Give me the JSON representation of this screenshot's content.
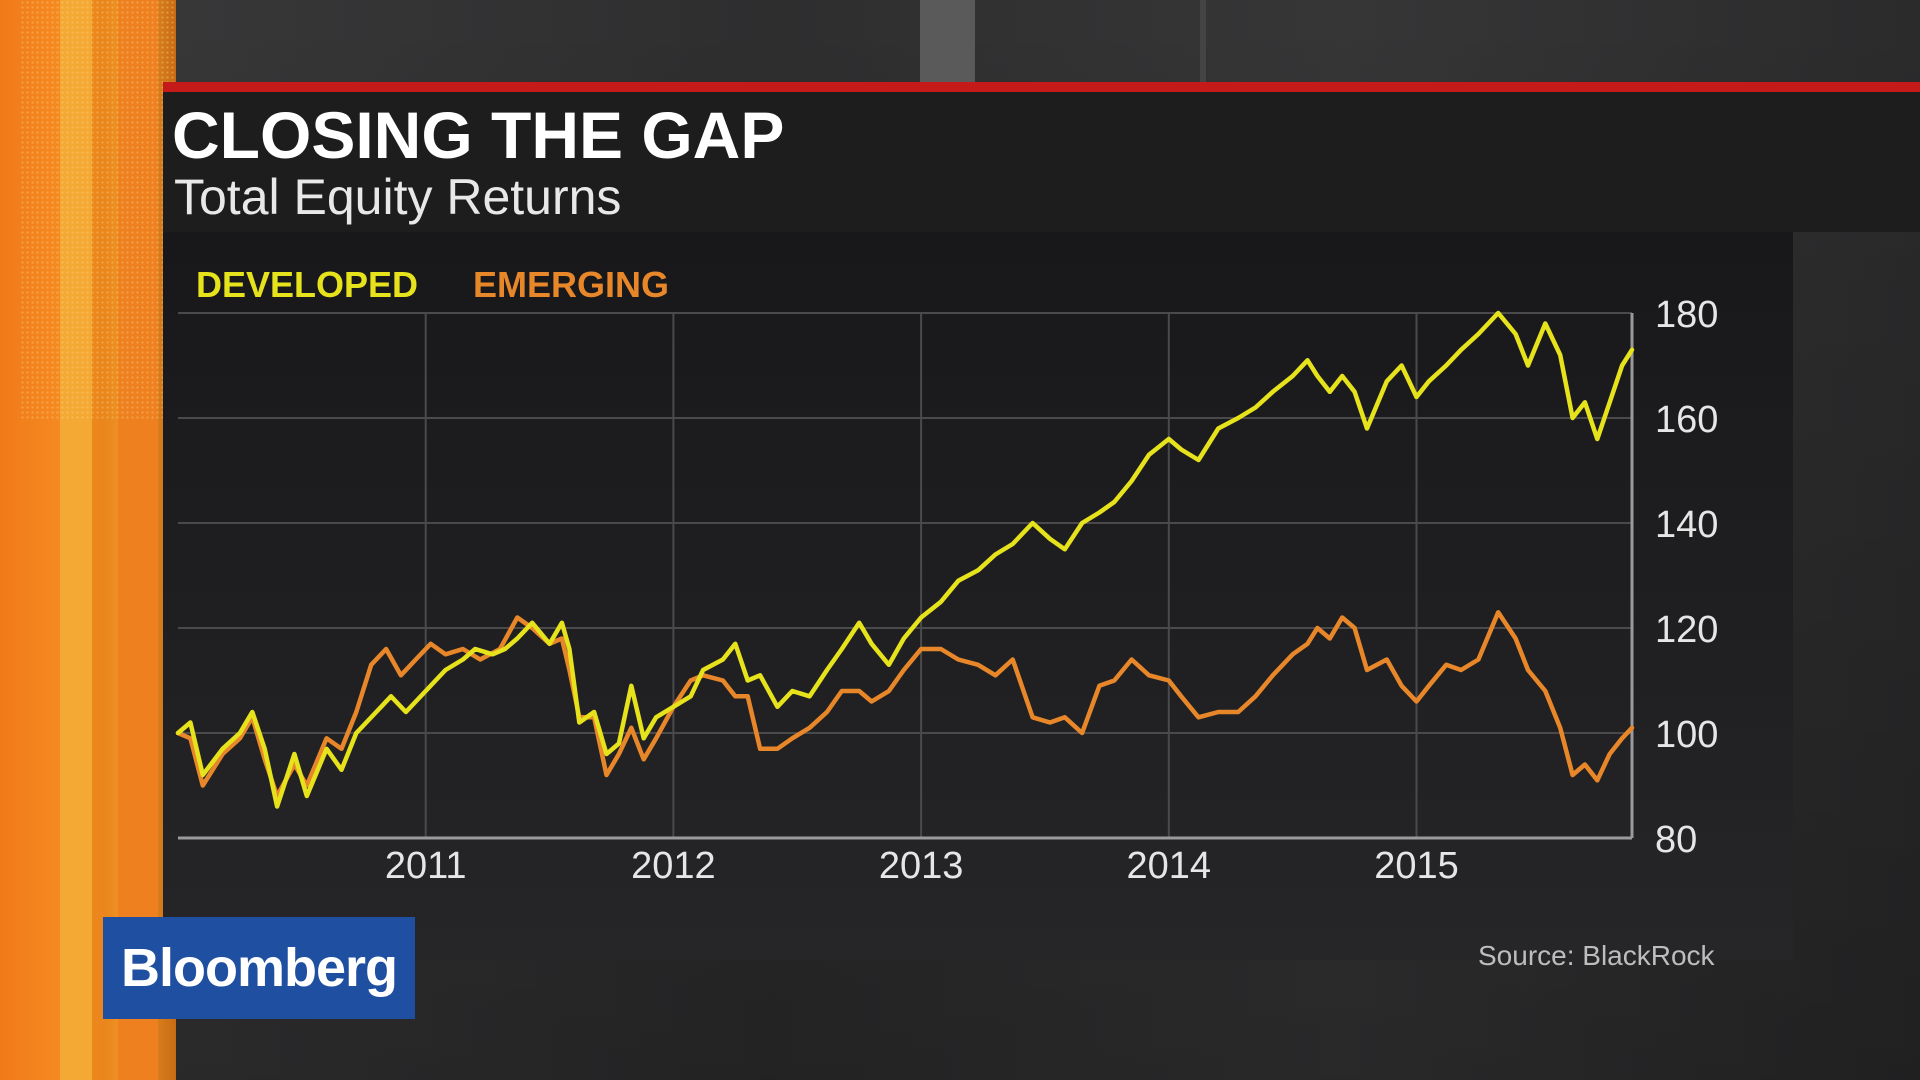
{
  "header": {
    "title": "CLOSING THE GAP",
    "subtitle": "Total Equity Returns"
  },
  "source": "Source: BlackRock",
  "logo": "Bloomberg",
  "colors": {
    "accent_red": "#c41a1a",
    "developed": "#e6e21c",
    "emerging": "#e8872a",
    "logo_blue": "#1f4fa0"
  },
  "chart_data": {
    "type": "line",
    "title": "CLOSING THE GAP",
    "subtitle": "Total Equity Returns",
    "xlabel": "",
    "ylabel": "",
    "ylim": [
      80,
      180
    ],
    "xlim": [
      2010.0,
      2015.87
    ],
    "yticks": [
      180,
      160,
      140,
      120,
      100,
      80
    ],
    "xticks": [
      2011,
      2012,
      2013,
      2014,
      2015
    ],
    "x_tick_labels": [
      "2011",
      "2012",
      "2013",
      "2014",
      "2015"
    ],
    "grid": true,
    "legend_position": "top-left",
    "y_axis_side": "right",
    "series": [
      {
        "name": "DEVELOPED",
        "color": "#e6e21c",
        "points": [
          [
            2010.0,
            100
          ],
          [
            2010.05,
            102
          ],
          [
            2010.1,
            92
          ],
          [
            2010.18,
            97
          ],
          [
            2010.25,
            100
          ],
          [
            2010.3,
            104
          ],
          [
            2010.35,
            97
          ],
          [
            2010.4,
            86
          ],
          [
            2010.47,
            96
          ],
          [
            2010.52,
            88
          ],
          [
            2010.6,
            97
          ],
          [
            2010.66,
            93
          ],
          [
            2010.72,
            100
          ],
          [
            2010.8,
            104
          ],
          [
            2010.86,
            107
          ],
          [
            2010.92,
            104
          ],
          [
            2011.0,
            108
          ],
          [
            2011.08,
            112
          ],
          [
            2011.15,
            114
          ],
          [
            2011.2,
            116
          ],
          [
            2011.27,
            115
          ],
          [
            2011.32,
            116
          ],
          [
            2011.37,
            118
          ],
          [
            2011.43,
            121
          ],
          [
            2011.5,
            117
          ],
          [
            2011.55,
            121
          ],
          [
            2011.58,
            116
          ],
          [
            2011.62,
            102
          ],
          [
            2011.68,
            104
          ],
          [
            2011.73,
            96
          ],
          [
            2011.78,
            98
          ],
          [
            2011.83,
            109
          ],
          [
            2011.88,
            99
          ],
          [
            2011.93,
            103
          ],
          [
            2012.0,
            105
          ],
          [
            2012.07,
            107
          ],
          [
            2012.12,
            112
          ],
          [
            2012.2,
            114
          ],
          [
            2012.25,
            117
          ],
          [
            2012.3,
            110
          ],
          [
            2012.35,
            111
          ],
          [
            2012.42,
            105
          ],
          [
            2012.48,
            108
          ],
          [
            2012.55,
            107
          ],
          [
            2012.62,
            112
          ],
          [
            2012.68,
            116
          ],
          [
            2012.75,
            121
          ],
          [
            2012.8,
            117
          ],
          [
            2012.87,
            113
          ],
          [
            2012.93,
            118
          ],
          [
            2013.0,
            122
          ],
          [
            2013.08,
            125
          ],
          [
            2013.15,
            129
          ],
          [
            2013.23,
            131
          ],
          [
            2013.3,
            134
          ],
          [
            2013.37,
            136
          ],
          [
            2013.45,
            140
          ],
          [
            2013.52,
            137
          ],
          [
            2013.58,
            135
          ],
          [
            2013.65,
            140
          ],
          [
            2013.72,
            142
          ],
          [
            2013.78,
            144
          ],
          [
            2013.85,
            148
          ],
          [
            2013.92,
            153
          ],
          [
            2014.0,
            156
          ],
          [
            2014.05,
            154
          ],
          [
            2014.12,
            152
          ],
          [
            2014.2,
            158
          ],
          [
            2014.28,
            160
          ],
          [
            2014.35,
            162
          ],
          [
            2014.42,
            165
          ],
          [
            2014.5,
            168
          ],
          [
            2014.56,
            171
          ],
          [
            2014.6,
            168
          ],
          [
            2014.65,
            165
          ],
          [
            2014.7,
            168
          ],
          [
            2014.75,
            165
          ],
          [
            2014.8,
            158
          ],
          [
            2014.88,
            167
          ],
          [
            2014.94,
            170
          ],
          [
            2015.0,
            164
          ],
          [
            2015.05,
            167
          ],
          [
            2015.12,
            170
          ],
          [
            2015.18,
            173
          ],
          [
            2015.25,
            176
          ],
          [
            2015.33,
            180
          ],
          [
            2015.4,
            176
          ],
          [
            2015.45,
            170
          ],
          [
            2015.52,
            178
          ],
          [
            2015.58,
            172
          ],
          [
            2015.63,
            160
          ],
          [
            2015.68,
            163
          ],
          [
            2015.73,
            156
          ],
          [
            2015.78,
            163
          ],
          [
            2015.83,
            170
          ],
          [
            2015.87,
            173
          ]
        ]
      },
      {
        "name": "EMERGING",
        "color": "#e8872a",
        "points": [
          [
            2010.0,
            100
          ],
          [
            2010.05,
            99
          ],
          [
            2010.1,
            90
          ],
          [
            2010.18,
            96
          ],
          [
            2010.25,
            99
          ],
          [
            2010.3,
            103
          ],
          [
            2010.35,
            95
          ],
          [
            2010.4,
            88
          ],
          [
            2010.47,
            94
          ],
          [
            2010.52,
            90
          ],
          [
            2010.6,
            99
          ],
          [
            2010.66,
            97
          ],
          [
            2010.72,
            104
          ],
          [
            2010.78,
            113
          ],
          [
            2010.84,
            116
          ],
          [
            2010.9,
            111
          ],
          [
            2010.96,
            114
          ],
          [
            2011.02,
            117
          ],
          [
            2011.08,
            115
          ],
          [
            2011.15,
            116
          ],
          [
            2011.22,
            114
          ],
          [
            2011.3,
            116
          ],
          [
            2011.37,
            122
          ],
          [
            2011.43,
            120
          ],
          [
            2011.5,
            117
          ],
          [
            2011.55,
            118
          ],
          [
            2011.58,
            112
          ],
          [
            2011.62,
            103
          ],
          [
            2011.68,
            103
          ],
          [
            2011.73,
            92
          ],
          [
            2011.78,
            96
          ],
          [
            2011.83,
            101
          ],
          [
            2011.88,
            95
          ],
          [
            2011.93,
            99
          ],
          [
            2012.0,
            105
          ],
          [
            2012.07,
            110
          ],
          [
            2012.12,
            111
          ],
          [
            2012.2,
            110
          ],
          [
            2012.25,
            107
          ],
          [
            2012.3,
            107
          ],
          [
            2012.35,
            97
          ],
          [
            2012.42,
            97
          ],
          [
            2012.48,
            99
          ],
          [
            2012.55,
            101
          ],
          [
            2012.62,
            104
          ],
          [
            2012.68,
            108
          ],
          [
            2012.75,
            108
          ],
          [
            2012.8,
            106
          ],
          [
            2012.87,
            108
          ],
          [
            2012.93,
            112
          ],
          [
            2013.0,
            116
          ],
          [
            2013.08,
            116
          ],
          [
            2013.15,
            114
          ],
          [
            2013.23,
            113
          ],
          [
            2013.3,
            111
          ],
          [
            2013.37,
            114
          ],
          [
            2013.45,
            103
          ],
          [
            2013.52,
            102
          ],
          [
            2013.58,
            103
          ],
          [
            2013.65,
            100
          ],
          [
            2013.72,
            109
          ],
          [
            2013.78,
            110
          ],
          [
            2013.85,
            114
          ],
          [
            2013.92,
            111
          ],
          [
            2014.0,
            110
          ],
          [
            2014.05,
            107
          ],
          [
            2014.12,
            103
          ],
          [
            2014.2,
            104
          ],
          [
            2014.28,
            104
          ],
          [
            2014.35,
            107
          ],
          [
            2014.42,
            111
          ],
          [
            2014.5,
            115
          ],
          [
            2014.56,
            117
          ],
          [
            2014.6,
            120
          ],
          [
            2014.65,
            118
          ],
          [
            2014.7,
            122
          ],
          [
            2014.75,
            120
          ],
          [
            2014.8,
            112
          ],
          [
            2014.88,
            114
          ],
          [
            2014.94,
            109
          ],
          [
            2015.0,
            106
          ],
          [
            2015.05,
            109
          ],
          [
            2015.12,
            113
          ],
          [
            2015.18,
            112
          ],
          [
            2015.25,
            114
          ],
          [
            2015.33,
            123
          ],
          [
            2015.4,
            118
          ],
          [
            2015.45,
            112
          ],
          [
            2015.52,
            108
          ],
          [
            2015.58,
            101
          ],
          [
            2015.63,
            92
          ],
          [
            2015.68,
            94
          ],
          [
            2015.73,
            91
          ],
          [
            2015.78,
            96
          ],
          [
            2015.83,
            99
          ],
          [
            2015.87,
            101
          ]
        ]
      }
    ]
  }
}
